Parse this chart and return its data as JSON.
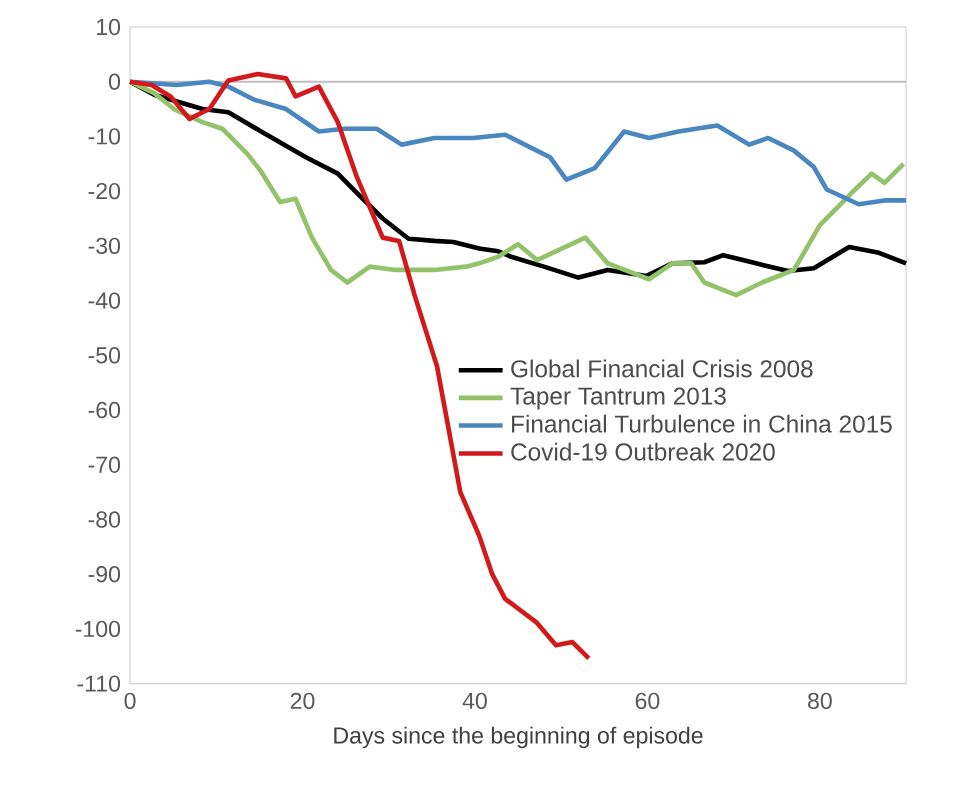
{
  "chart_data": {
    "type": "line",
    "xlabel": "Days since the beginning of episode",
    "xlim": [
      0,
      90
    ],
    "xticks": [
      0,
      20,
      40,
      60,
      80
    ],
    "ylim": [
      -110,
      10
    ],
    "yticks": [
      -110,
      -100,
      -90,
      -80,
      -70,
      -60,
      -50,
      -40,
      -30,
      -20,
      -10,
      0,
      10
    ],
    "grid": false,
    "legend": "center right",
    "marker": "none",
    "line_style": "solid",
    "ref_lines": [
      {
        "axis": "y",
        "value": 0,
        "color": "#bfbfbf"
      }
    ],
    "series": [
      {
        "name": "Global Financial Crisis 2008",
        "color": "#000000",
        "x": [
          0,
          2.8,
          8.4,
          11.4,
          15.1,
          20.4,
          24.1,
          26.3,
          29.3,
          32.3,
          35.3,
          37.5,
          40.5,
          42.7,
          44.2,
          48,
          52,
          55.4,
          59.9,
          62.9,
          66.6,
          68.8,
          72.6,
          76.3,
          79.3,
          83.4,
          86.7,
          90
        ],
        "values": [
          0,
          -2.4,
          -5,
          -5.6,
          -9,
          -13.8,
          -16.8,
          -20.3,
          -25,
          -28.7,
          -29.1,
          -29.3,
          -30.5,
          -31,
          -32,
          -33.8,
          -35.8,
          -34.4,
          -35.5,
          -33.2,
          -33,
          -31.7,
          -33.2,
          -34.6,
          -34.1,
          -30.2,
          -31.2,
          -33.2
        ]
      },
      {
        "name": "Taper Tantrum 2013",
        "color": "#92c26a",
        "x": [
          0,
          2.8,
          5.1,
          8.4,
          10.7,
          13.6,
          15.1,
          17.4,
          19.2,
          21.1,
          23.3,
          25.2,
          27.8,
          30.8,
          35.3,
          39,
          40.5,
          42.7,
          45,
          47.2,
          52.8,
          55.4,
          60.2,
          62.9,
          65.1,
          66.6,
          70.3,
          73.3,
          77,
          80,
          83.7,
          86,
          87.5,
          89.7
        ],
        "values": [
          0,
          -2.1,
          -5,
          -7.4,
          -8.6,
          -13.2,
          -16.2,
          -22,
          -21.4,
          -28.5,
          -34.4,
          -36.7,
          -33.8,
          -34.4,
          -34.4,
          -33.8,
          -33.2,
          -32,
          -29.7,
          -32.6,
          -28.5,
          -33.2,
          -36.1,
          -33.2,
          -33.2,
          -36.7,
          -39,
          -36.7,
          -34.4,
          -26.2,
          -20.3,
          -16.8,
          -18.5,
          -15
        ]
      },
      {
        "name": "Financial Turbulence in China 2015",
        "color": "#4a86c0",
        "x": [
          0,
          5.4,
          9.2,
          11.4,
          14.4,
          18.1,
          21.9,
          24.8,
          28.6,
          31.5,
          35.3,
          39.8,
          43.5,
          48.7,
          50.6,
          53.9,
          57.3,
          60.2,
          63.6,
          68.1,
          71.8,
          74,
          77,
          79.3,
          80.8,
          84.5,
          87.5,
          90
        ],
        "values": [
          0,
          -0.6,
          0,
          -0.9,
          -3.3,
          -5,
          -9.1,
          -8.6,
          -8.6,
          -11.5,
          -10.3,
          -10.3,
          -9.7,
          -13.8,
          -17.9,
          -15.8,
          -9.1,
          -10.3,
          -9.1,
          -8,
          -11.5,
          -10.3,
          -12.6,
          -15.6,
          -19.7,
          -22.4,
          -21.7,
          -21.7
        ]
      },
      {
        "name": "Covid-19 Outbreak 2020",
        "color": "#d2191c",
        "x": [
          0,
          2.5,
          4.7,
          6.9,
          9.2,
          11.4,
          14.8,
          18.1,
          19.2,
          21.9,
          24.1,
          26.3,
          29.3,
          31.2,
          33,
          35.6,
          38.3,
          40.5,
          42,
          43.5,
          47.2,
          49.4,
          51.3,
          53.2
        ],
        "values": [
          0,
          -0.6,
          -2.7,
          -6.8,
          -5,
          0.2,
          1.4,
          0.6,
          -2.7,
          -0.9,
          -7.4,
          -17.4,
          -28.5,
          -29.1,
          -39,
          -52,
          -75,
          -83,
          -90,
          -94.5,
          -98.9,
          -103,
          -102.4,
          -105.4
        ]
      }
    ]
  }
}
